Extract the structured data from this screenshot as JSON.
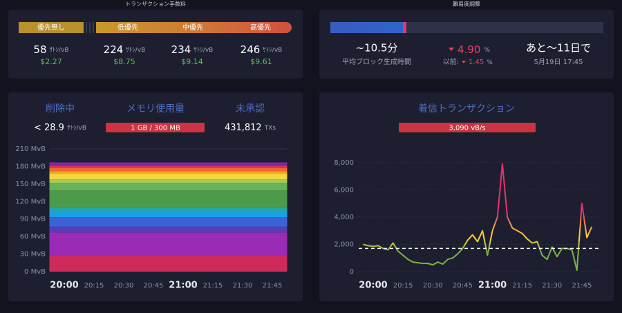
{
  "fees": {
    "title": "トランザクション手数料",
    "tiers": [
      {
        "label": "優先無し",
        "rate": 58,
        "unit": "ｻﾄｼ/vB",
        "usd": "$2.27"
      },
      {
        "label": "低優先",
        "rate": 224,
        "unit": "ｻﾄｼ/vB",
        "usd": "$8.75"
      },
      {
        "label": "中優先",
        "rate": 234,
        "unit": "ｻﾄｼ/vB",
        "usd": "$9.14"
      },
      {
        "label": "高優先",
        "rate": 246,
        "unit": "ｻﾄｼ/vB",
        "usd": "$9.61"
      }
    ]
  },
  "difficulty": {
    "title": "難易度調整",
    "block_time": "~10.5分",
    "block_time_label": "平均ブロック生成時間",
    "change": "4.90",
    "change_unit": "%",
    "previous_label": "以前:",
    "previous": "1.45",
    "previous_unit": "%",
    "remaining": "あと～11日で",
    "date": "5月19日 17:45"
  },
  "mempool": {
    "purging_label": "削除中",
    "purging": "< 28.9",
    "purging_unit": "ｻﾄｼ/vB",
    "memory_label": "メモリ使用量",
    "memory": "1 GB / 300 MB",
    "unconfirmed_label": "未承認",
    "unconfirmed": "431,812",
    "unconfirmed_unit": "TXs"
  },
  "incoming": {
    "title": "着信トランザクション",
    "rate": "3,090 vB/s"
  },
  "chart_data": [
    {
      "type": "area",
      "stacked": true,
      "categories": [
        null,
        "20:00",
        null,
        "20:15",
        null,
        "20:30",
        null,
        "20:45",
        null,
        "21:00",
        null,
        "21:15",
        null,
        "21:30",
        null,
        "21:45",
        null
      ],
      "ylim": [
        0,
        210
      ],
      "yticks": [
        {
          "value": 0,
          "label": "0 MvB"
        },
        {
          "value": 30,
          "label": "30 MvB"
        },
        {
          "value": 60,
          "label": "60 MvB"
        },
        {
          "value": 90,
          "label": "90 MvB"
        },
        {
          "value": 120,
          "label": "120 MvB"
        },
        {
          "value": 150,
          "label": "150 MvB"
        },
        {
          "value": 180,
          "label": "180 MvB"
        },
        {
          "value": 210,
          "label": "210 MvB"
        }
      ],
      "grid": true,
      "series": [
        {
          "color": "#d02a5a",
          "values": [
            27,
            27,
            27,
            27,
            27,
            27,
            27,
            27,
            27,
            27,
            27,
            27,
            27,
            27,
            27,
            27,
            27
          ]
        },
        {
          "color": "#9a2bb5",
          "values": [
            40,
            40,
            40,
            40,
            40,
            40,
            40,
            40,
            40,
            40,
            40,
            40,
            40,
            40,
            40,
            40,
            40
          ]
        },
        {
          "color": "#5b3bb8",
          "values": [
            10,
            10,
            10,
            10,
            10,
            10,
            10,
            10,
            10,
            10,
            10,
            10,
            10,
            10,
            10,
            10,
            10
          ]
        },
        {
          "color": "#3a63d6",
          "values": [
            16,
            16,
            16,
            16,
            16,
            16,
            16,
            16,
            16,
            16,
            16,
            16,
            16,
            16,
            16,
            16,
            16
          ]
        },
        {
          "color": "#1ba0e8",
          "values": [
            9,
            9,
            9,
            9,
            9,
            9,
            9,
            9,
            9,
            9,
            9,
            9,
            9,
            9,
            9,
            9,
            9
          ]
        },
        {
          "color": "#22a8a6",
          "values": [
            7,
            7,
            7,
            7,
            7,
            7,
            7,
            7,
            7,
            7,
            7,
            7,
            7,
            7,
            7,
            7,
            7
          ]
        },
        {
          "color": "#4c9a4a",
          "values": [
            30,
            30,
            30,
            30,
            30,
            30,
            30,
            30,
            30,
            30,
            30,
            30,
            30,
            30,
            30,
            30,
            30
          ]
        },
        {
          "color": "#68b25a",
          "values": [
            13,
            13,
            13,
            13,
            13,
            13,
            13,
            13,
            13,
            13,
            13,
            13,
            13,
            13,
            13,
            13,
            13
          ]
        },
        {
          "color": "#a5cc5a",
          "values": [
            6,
            6,
            6,
            6,
            6,
            6,
            6,
            6,
            6,
            6,
            6,
            6,
            6,
            6,
            6,
            6,
            6
          ]
        },
        {
          "color": "#f1d93c",
          "values": [
            9,
            9,
            9,
            9,
            9,
            9,
            9,
            9,
            9,
            9,
            9,
            9,
            9,
            9,
            9,
            9,
            9
          ]
        },
        {
          "color": "#f5a623",
          "values": [
            5,
            5,
            5,
            5,
            5,
            5,
            5,
            5,
            5,
            5,
            5,
            5,
            5,
            5,
            5,
            5,
            5
          ]
        },
        {
          "color": "#ee6a2b",
          "values": [
            5,
            5,
            5,
            5,
            5,
            5,
            5,
            5,
            5,
            5,
            5,
            5,
            5,
            5,
            5,
            5,
            5
          ]
        },
        {
          "color": "#e0325f",
          "values": [
            4,
            4,
            4,
            4,
            4,
            4,
            4,
            4,
            4,
            4,
            4,
            4,
            4,
            4,
            4,
            4,
            4
          ]
        },
        {
          "color": "#7e2aa8",
          "values": [
            6,
            6,
            6,
            6,
            6,
            6,
            6,
            6,
            6,
            6,
            6,
            6,
            6,
            6,
            6,
            6,
            6
          ]
        }
      ]
    },
    {
      "type": "line",
      "categories": [
        null,
        null,
        "20:00",
        null,
        null,
        null,
        null,
        null,
        "20:15",
        null,
        null,
        null,
        null,
        null,
        "20:30",
        null,
        null,
        null,
        null,
        null,
        "20:45",
        null,
        null,
        null,
        null,
        null,
        "21:00",
        null,
        null,
        null,
        null,
        null,
        "21:15",
        null,
        null,
        null,
        null,
        null,
        "21:30",
        null,
        null,
        null,
        null,
        null,
        "21:45",
        null,
        null
      ],
      "ylim": [
        0,
        9000
      ],
      "yticks": [
        0,
        {
          "value": 2000,
          "label": "2,000"
        },
        {
          "value": 4000,
          "label": "4,000"
        },
        {
          "value": 6000,
          "label": "6,000"
        },
        {
          "value": 8000,
          "label": "8,000"
        }
      ],
      "grid": true,
      "threshold": 1700,
      "colors": [
        "#7cb342",
        "#fdd835",
        "#ffa040",
        "#e8336a"
      ],
      "values": [
        2000,
        1900,
        1850,
        1900,
        1700,
        1600,
        2100,
        1500,
        1200,
        900,
        700,
        650,
        600,
        600,
        500,
        700,
        550,
        900,
        1000,
        1300,
        1700,
        2300,
        2700,
        2200,
        3000,
        1200,
        3000,
        4000,
        7900,
        4000,
        3200,
        3000,
        2800,
        2400,
        2100,
        2200,
        1200,
        900,
        1800,
        1100,
        1700,
        1700,
        1600,
        100,
        5000,
        2500,
        3300
      ]
    }
  ]
}
